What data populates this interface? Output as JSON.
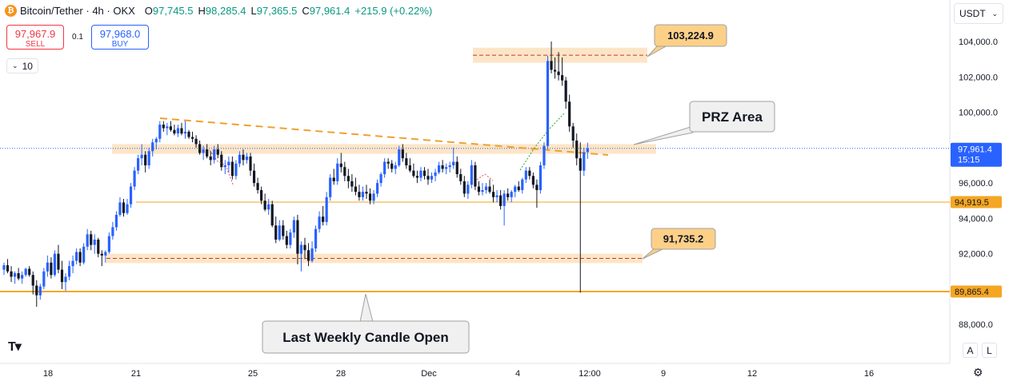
{
  "header": {
    "symbol": "Bitcoin/Tether · 4h · OKX",
    "open_label": "O",
    "open": "97,745.5",
    "high_label": "H",
    "high": "98,285.4",
    "low_label": "L",
    "low": "97,365.5",
    "close_label": "C",
    "close": "97,961.4",
    "change": "+215.9 (+0.22%)"
  },
  "trade": {
    "sell_price": "97,967.9",
    "sell_label": "SELL",
    "spread": "0.1",
    "buy_price": "97,968.0",
    "buy_label": "BUY"
  },
  "indicator_count": "10",
  "currency": "USDT",
  "scale_buttons": [
    "A",
    "L"
  ],
  "colors": {
    "up": "#2962ff",
    "down": "#131722",
    "zone": "#fbe0bd",
    "level": "#f5a623",
    "trend": "#f0a030",
    "price_label": "#2962ff"
  },
  "chart_data": {
    "type": "candlestick",
    "y_ticks": [
      88000,
      90000,
      92000,
      94000,
      96000,
      98000,
      100000,
      102000,
      104000
    ],
    "y_tick_labels": [
      "88,000.0",
      "90,000.0",
      "92,000.0",
      "94,000.0",
      "96,000.0",
      "98,000.0",
      "100,000.0",
      "102,000.0",
      "104,000.0"
    ],
    "ylim": [
      87200,
      104600
    ],
    "x_tick_labels": [
      "18",
      "21",
      "25",
      "28",
      "Dec",
      "4",
      "12:00",
      "9",
      "12",
      "16"
    ],
    "current_price": {
      "value": 97961.4,
      "label": "97,961.4",
      "countdown": "15:15"
    },
    "levels": [
      {
        "value": 94919.5,
        "label": "94,919.5"
      },
      {
        "value": 89865.4,
        "label": "89,865.4"
      }
    ],
    "zones": [
      {
        "from": 102800,
        "to": 103650,
        "mid": 103224.9
      },
      {
        "from": 97650,
        "to": 98200,
        "mid": null
      },
      {
        "from": 91470,
        "to": 92000,
        "mid": 91735.2
      }
    ],
    "callouts": [
      {
        "text": "103,224.9"
      },
      {
        "text": "PRZ Area"
      },
      {
        "text": "91,735.2"
      },
      {
        "text": "Last Weekly Candle Open"
      }
    ],
    "candles": [
      [
        91100,
        91500,
        90800,
        91350
      ],
      [
        91350,
        91700,
        90900,
        91000
      ],
      [
        91000,
        91300,
        90400,
        90700
      ],
      [
        90700,
        91000,
        90300,
        90900
      ],
      [
        90900,
        91200,
        90500,
        90600
      ],
      [
        90600,
        91000,
        90300,
        90800
      ],
      [
        90800,
        91200,
        90700,
        91150
      ],
      [
        91150,
        91300,
        90700,
        90800
      ],
      [
        90800,
        91000,
        89700,
        90200
      ],
      [
        90200,
        90500,
        89000,
        89650
      ],
      [
        89650,
        90300,
        89400,
        90150
      ],
      [
        90150,
        91200,
        90000,
        91000
      ],
      [
        91000,
        91900,
        90700,
        91500
      ],
      [
        91500,
        91800,
        90600,
        90800
      ],
      [
        90800,
        92200,
        90700,
        92000
      ],
      [
        92000,
        92500,
        90900,
        91100
      ],
      [
        91100,
        91600,
        90000,
        90400
      ],
      [
        90400,
        90900,
        89900,
        90700
      ],
      [
        90700,
        91600,
        90500,
        91300
      ],
      [
        91300,
        91900,
        90900,
        91600
      ],
      [
        91600,
        92300,
        91400,
        92100
      ],
      [
        92100,
        92300,
        91300,
        91500
      ],
      [
        91500,
        92600,
        91400,
        92400
      ],
      [
        92400,
        93400,
        92200,
        93100
      ],
      [
        93100,
        93300,
        92200,
        92500
      ],
      [
        92500,
        93100,
        92000,
        92800
      ],
      [
        92800,
        92900,
        91800,
        92000
      ],
      [
        92000,
        92200,
        91300,
        91900
      ],
      [
        91900,
        92200,
        91500,
        92100
      ],
      [
        92100,
        93200,
        92000,
        93000
      ],
      [
        93000,
        93800,
        92800,
        93500
      ],
      [
        93500,
        94400,
        93300,
        94200
      ],
      [
        94200,
        95200,
        94100,
        94900
      ],
      [
        94900,
        95100,
        94100,
        94300
      ],
      [
        94300,
        95100,
        94200,
        94800
      ],
      [
        94800,
        96000,
        94600,
        95800
      ],
      [
        95800,
        96900,
        95600,
        96700
      ],
      [
        96700,
        97600,
        96500,
        97400
      ],
      [
        97400,
        98200,
        97000,
        97600
      ],
      [
        97600,
        97800,
        96600,
        97000
      ],
      [
        97000,
        98000,
        96800,
        97800
      ],
      [
        97800,
        98500,
        97500,
        98300
      ],
      [
        98300,
        98600,
        97900,
        98500
      ],
      [
        98500,
        99500,
        98300,
        99300
      ],
      [
        99300,
        99500,
        98900,
        99100
      ],
      [
        99100,
        99400,
        98700,
        99200
      ],
      [
        99200,
        99500,
        98900,
        99000
      ],
      [
        99000,
        99300,
        98700,
        98800
      ],
      [
        98800,
        99300,
        98600,
        99100
      ],
      [
        99100,
        99400,
        98700,
        98800
      ],
      [
        98800,
        99500,
        98500,
        98900
      ],
      [
        98900,
        99000,
        98500,
        98600
      ],
      [
        98600,
        98900,
        98300,
        98500
      ],
      [
        98500,
        98700,
        98000,
        98200
      ],
      [
        98200,
        98400,
        97600,
        97700
      ],
      [
        97700,
        98100,
        97300,
        97900
      ],
      [
        97900,
        98200,
        97400,
        97500
      ],
      [
        97500,
        97800,
        97000,
        97300
      ],
      [
        97300,
        98100,
        97100,
        97900
      ],
      [
        97900,
        98200,
        97400,
        97600
      ],
      [
        97600,
        97800,
        96700,
        96900
      ],
      [
        96900,
        97300,
        96500,
        97000
      ],
      [
        97000,
        97500,
        96600,
        97200
      ],
      [
        97200,
        97500,
        96200,
        96400
      ],
      [
        96400,
        97300,
        96200,
        97100
      ],
      [
        97100,
        97800,
        96900,
        97600
      ],
      [
        97600,
        97900,
        97000,
        97300
      ],
      [
        97300,
        97700,
        97100,
        97500
      ],
      [
        97500,
        97700,
        96400,
        96700
      ],
      [
        96700,
        97100,
        95800,
        96000
      ],
      [
        96000,
        96300,
        95400,
        95600
      ],
      [
        95600,
        95800,
        94800,
        95000
      ],
      [
        95000,
        95400,
        94400,
        94500
      ],
      [
        94500,
        95100,
        94200,
        94800
      ],
      [
        94800,
        95000,
        93500,
        93600
      ],
      [
        93600,
        94100,
        92600,
        92800
      ],
      [
        92800,
        93900,
        92700,
        93600
      ],
      [
        93600,
        93900,
        92800,
        93000
      ],
      [
        93000,
        93300,
        92300,
        92500
      ],
      [
        92500,
        93400,
        92300,
        93200
      ],
      [
        93200,
        94100,
        92900,
        93900
      ],
      [
        93900,
        94200,
        91400,
        92000
      ],
      [
        92000,
        92700,
        91000,
        92500
      ],
      [
        92500,
        92900,
        91700,
        92200
      ],
      [
        92200,
        92600,
        91300,
        91600
      ],
      [
        91600,
        92700,
        91500,
        92300
      ],
      [
        92300,
        93600,
        92100,
        93400
      ],
      [
        93400,
        94400,
        93200,
        94100
      ],
      [
        94100,
        94700,
        93600,
        93800
      ],
      [
        93800,
        95500,
        93600,
        95200
      ],
      [
        95200,
        96500,
        95000,
        96300
      ],
      [
        96300,
        96800,
        95900,
        96100
      ],
      [
        96100,
        97400,
        95900,
        97100
      ],
      [
        97100,
        97700,
        96600,
        96900
      ],
      [
        96900,
        97200,
        96100,
        96400
      ],
      [
        96400,
        96800,
        95700,
        96100
      ],
      [
        96100,
        96500,
        95500,
        95800
      ],
      [
        95800,
        96300,
        95300,
        95500
      ],
      [
        95500,
        95900,
        95000,
        95200
      ],
      [
        95200,
        95800,
        95000,
        95500
      ],
      [
        95500,
        95900,
        95100,
        95400
      ],
      [
        95400,
        95700,
        94800,
        95000
      ],
      [
        95000,
        95600,
        94800,
        95400
      ],
      [
        95400,
        96200,
        95200,
        96000
      ],
      [
        96000,
        96600,
        95800,
        96500
      ],
      [
        96500,
        97400,
        96300,
        97200
      ],
      [
        97200,
        97400,
        96800,
        97100
      ],
      [
        97100,
        97300,
        96600,
        96800
      ],
      [
        96800,
        97200,
        96500,
        97000
      ],
      [
        97000,
        98100,
        96900,
        97900
      ],
      [
        97900,
        98200,
        97200,
        97400
      ],
      [
        97400,
        97700,
        96800,
        97000
      ],
      [
        97000,
        97400,
        96600,
        96700
      ],
      [
        96700,
        97100,
        96300,
        96400
      ],
      [
        96400,
        96700,
        96000,
        96300
      ],
      [
        96300,
        96900,
        96100,
        96700
      ],
      [
        96700,
        96900,
        96200,
        96400
      ],
      [
        96400,
        96800,
        95900,
        96200
      ],
      [
        96200,
        96600,
        96000,
        96400
      ],
      [
        96400,
        96800,
        96100,
        96600
      ],
      [
        96600,
        97200,
        96500,
        97000
      ],
      [
        97000,
        97300,
        96600,
        96800
      ],
      [
        96800,
        97100,
        96500,
        96900
      ],
      [
        96900,
        97200,
        96600,
        97000
      ],
      [
        97000,
        98000,
        96800,
        97200
      ],
      [
        97200,
        97500,
        96300,
        96500
      ],
      [
        96500,
        96800,
        95900,
        96100
      ],
      [
        96100,
        96400,
        95200,
        95400
      ],
      [
        95400,
        96100,
        95100,
        95900
      ],
      [
        95900,
        97300,
        95700,
        97000
      ],
      [
        97000,
        97200,
        95600,
        95800
      ],
      [
        95800,
        96100,
        95300,
        95500
      ],
      [
        95500,
        96000,
        95300,
        95600
      ],
      [
        95600,
        96000,
        95400,
        95800
      ],
      [
        95800,
        96200,
        95400,
        95500
      ],
      [
        95500,
        95900,
        94900,
        95200
      ],
      [
        95200,
        95600,
        94900,
        95300
      ],
      [
        95300,
        95600,
        94500,
        94700
      ],
      [
        94700,
        95600,
        93600,
        95400
      ],
      [
        95400,
        95700,
        95000,
        95200
      ],
      [
        95200,
        95600,
        94900,
        95500
      ],
      [
        95500,
        95900,
        95200,
        95800
      ],
      [
        95800,
        96100,
        95500,
        95600
      ],
      [
        95600,
        96300,
        95400,
        96200
      ],
      [
        96200,
        96900,
        96000,
        96700
      ],
      [
        96700,
        96900,
        96200,
        96400
      ],
      [
        96400,
        96600,
        95700,
        95900
      ],
      [
        95900,
        96200,
        94600,
        95600
      ],
      [
        95600,
        97200,
        95400,
        97000
      ],
      [
        97000,
        98300,
        96800,
        98100
      ],
      [
        98100,
        103200,
        97900,
        102900
      ],
      [
        102900,
        104000,
        102200,
        102400
      ],
      [
        102400,
        103100,
        101900,
        102300
      ],
      [
        102300,
        103400,
        101800,
        102100
      ],
      [
        102100,
        103100,
        101500,
        101800
      ],
      [
        101800,
        102000,
        100200,
        100600
      ],
      [
        100600,
        101000,
        98900,
        99200
      ],
      [
        99200,
        99400,
        98000,
        98400
      ],
      [
        98400,
        98800,
        97000,
        97400
      ],
      [
        97400,
        98300,
        89800,
        96700
      ],
      [
        96700,
        98000,
        96400,
        97745.5
      ],
      [
        97745.5,
        98285.4,
        97365.5,
        97961.4
      ]
    ]
  }
}
